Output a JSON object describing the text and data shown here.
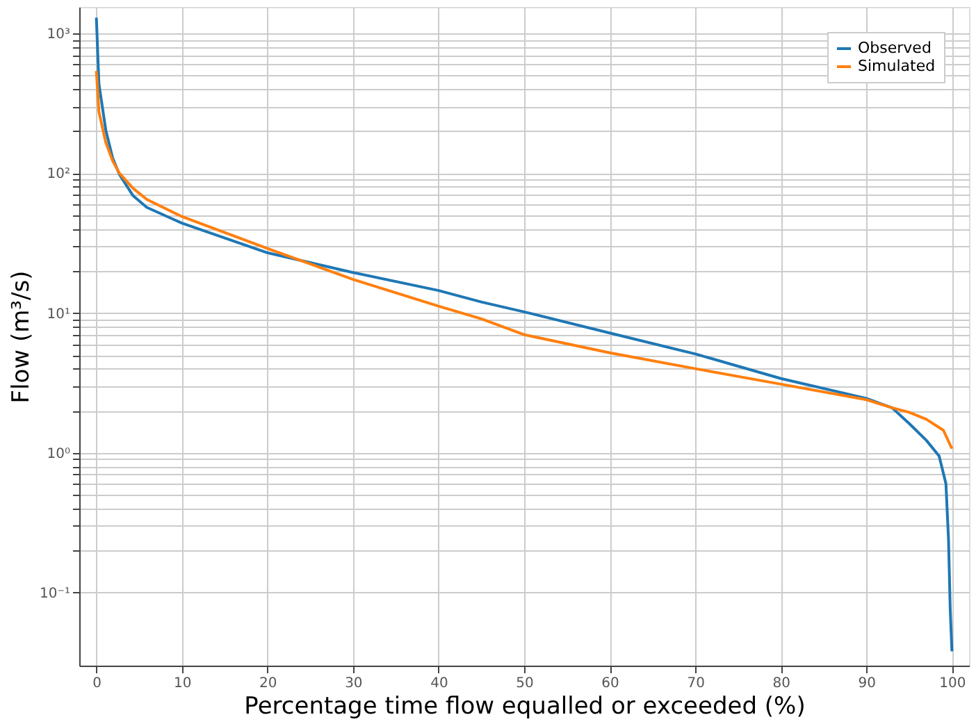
{
  "chart_data": {
    "type": "line",
    "xlabel": "Percentage time flow equalled or exceeded (%)",
    "ylabel": "Flow (m³/s)",
    "log": "y",
    "grid": true,
    "legend": "top right",
    "line_style": "solid",
    "xlim": [
      -2,
      102
    ],
    "xticks": [
      0,
      10,
      20,
      30,
      40,
      50,
      60,
      70,
      80,
      90,
      100
    ],
    "ylim": [
      0.03,
      1550
    ],
    "yticks": [
      {
        "value": 0.1,
        "label": "10⁻¹"
      },
      {
        "value": 0.2,
        "label": null
      },
      {
        "value": 0.3,
        "label": null
      },
      {
        "value": 0.4,
        "label": null
      },
      {
        "value": 0.5,
        "label": null
      },
      {
        "value": 0.6,
        "label": null
      },
      {
        "value": 0.7,
        "label": null
      },
      {
        "value": 0.8,
        "label": null
      },
      {
        "value": 0.9,
        "label": null
      },
      {
        "value": 1,
        "label": "10⁰"
      },
      {
        "value": 2,
        "label": null
      },
      {
        "value": 3,
        "label": null
      },
      {
        "value": 4,
        "label": null
      },
      {
        "value": 5,
        "label": null
      },
      {
        "value": 6,
        "label": null
      },
      {
        "value": 7,
        "label": null
      },
      {
        "value": 8,
        "label": null
      },
      {
        "value": 9,
        "label": null
      },
      {
        "value": 10,
        "label": "10¹"
      },
      {
        "value": 20,
        "label": null
      },
      {
        "value": 30,
        "label": null
      },
      {
        "value": 40,
        "label": null
      },
      {
        "value": 50,
        "label": null
      },
      {
        "value": 60,
        "label": null
      },
      {
        "value": 70,
        "label": null
      },
      {
        "value": 80,
        "label": null
      },
      {
        "value": 90,
        "label": null
      },
      {
        "value": 100,
        "label": "10²"
      },
      {
        "value": 200,
        "label": null
      },
      {
        "value": 300,
        "label": null
      },
      {
        "value": 400,
        "label": null
      },
      {
        "value": 500,
        "label": null
      },
      {
        "value": 600,
        "label": null
      },
      {
        "value": 700,
        "label": null
      },
      {
        "value": 800,
        "label": null
      },
      {
        "value": 900,
        "label": null
      },
      {
        "value": 1000,
        "label": "10³"
      }
    ],
    "series": [
      {
        "name": "Observed",
        "color": "#1f77b4",
        "x": [
          0,
          0.3,
          1.1,
          1.9,
          2.7,
          4.3,
          5.9,
          10,
          20,
          30,
          40,
          45,
          50,
          60,
          70,
          80,
          90,
          93,
          95,
          97,
          98.5,
          99.3,
          99.6,
          99.8,
          100
        ],
        "values": [
          1300,
          436,
          204,
          129,
          98,
          69,
          57,
          44,
          27,
          19.5,
          14.5,
          12,
          10.2,
          7.2,
          5.1,
          3.4,
          2.45,
          2.1,
          1.62,
          1.23,
          0.95,
          0.6,
          0.24,
          0.076,
          0.038
        ]
      },
      {
        "name": "Simulated",
        "color": "#ff7f0e",
        "x": [
          0,
          0.3,
          1.1,
          1.9,
          2.7,
          4.3,
          5.9,
          10,
          20,
          30,
          40,
          45,
          50,
          60,
          70,
          80,
          90,
          93,
          95,
          97,
          99,
          100
        ],
        "values": [
          540,
          275,
          166,
          123,
          100,
          78,
          65,
          49,
          29,
          17.4,
          11.2,
          9.1,
          7.0,
          5.2,
          4.0,
          3.1,
          2.4,
          2.1,
          1.95,
          1.74,
          1.45,
          1.07
        ]
      }
    ]
  }
}
